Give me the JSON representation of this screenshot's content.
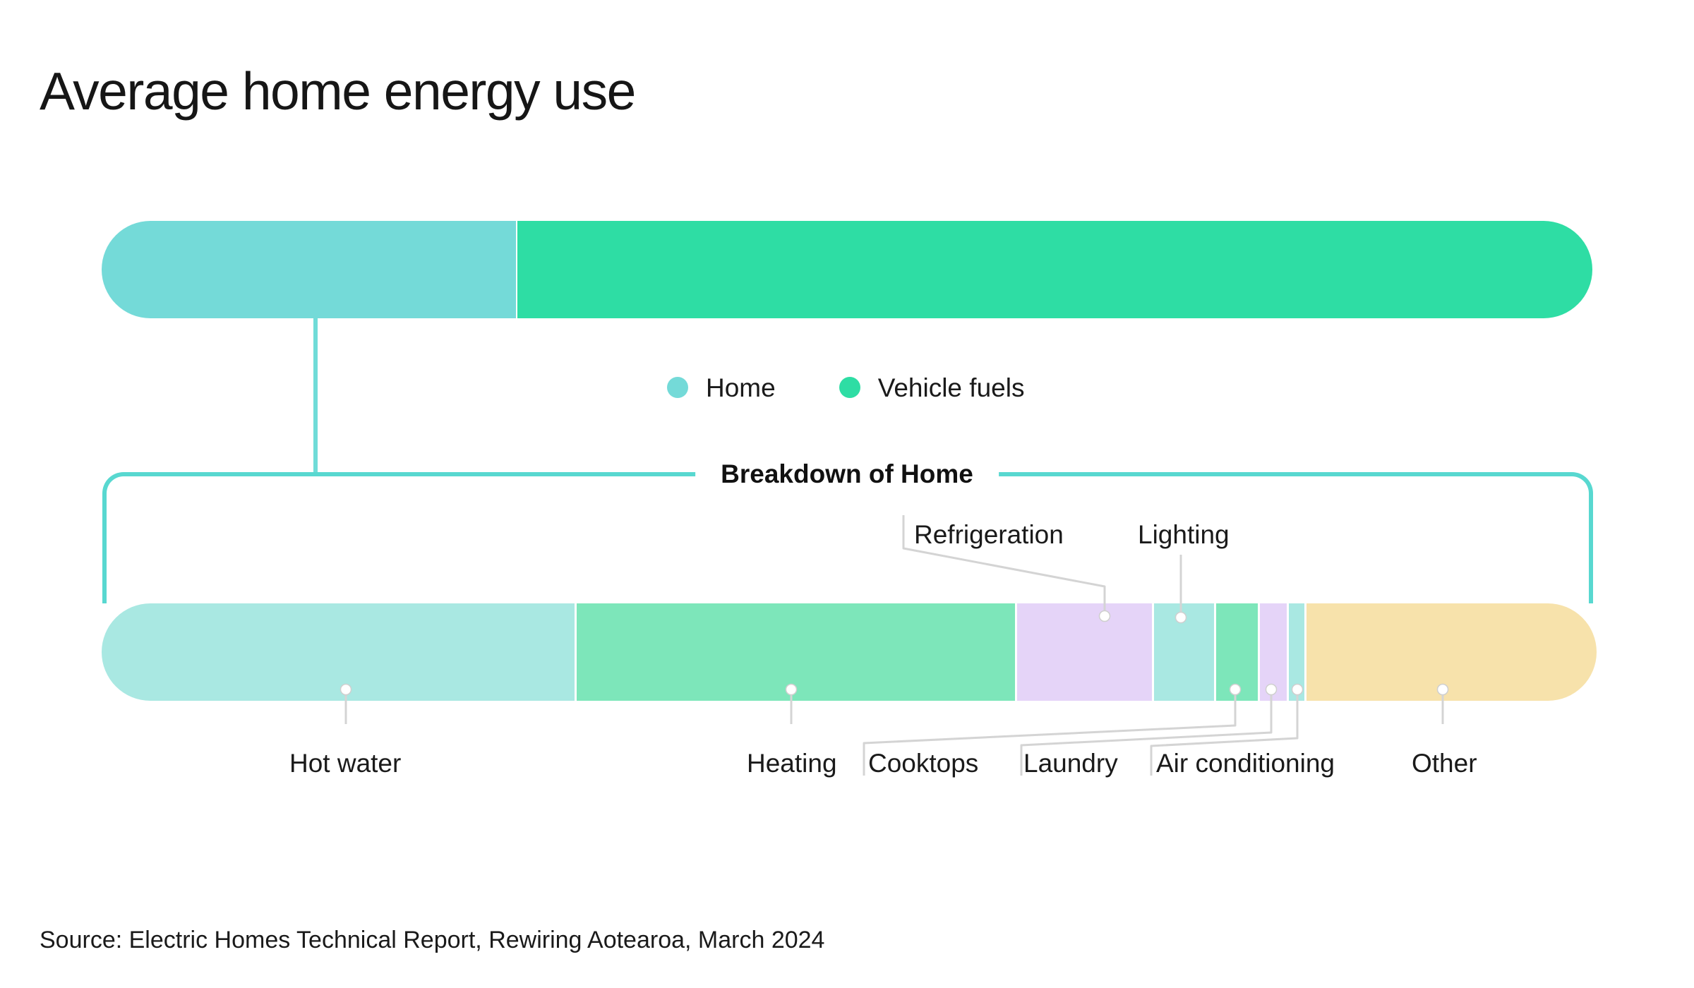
{
  "title": "Average home energy use",
  "source": "Source: Electric Homes Technical Report, Rewiring Aotearoa, March 2024",
  "breakdown_section_label": "Breakdown of Home",
  "colors": {
    "home": "#74DAD8",
    "vehicle_fuels": "#2EDDA4",
    "pale_cyan": "#A9E8E2",
    "mint": "#7DE6BA",
    "lavender": "#E5D4F8",
    "beige": "#F7E2AB",
    "bracket_teal": "#58D8D0",
    "callout_line": "#D4D4D4",
    "text": "#161616"
  },
  "legend": {
    "items": [
      {
        "label": "Home",
        "color": "home"
      },
      {
        "label": "Vehicle fuels",
        "color": "vehicle_fuels"
      }
    ]
  },
  "labels": {
    "hot_water": "Hot water",
    "heating": "Heating",
    "cooktops": "Cooktops",
    "refrigeration": "Refrigeration",
    "laundry": "Laundry",
    "lighting": "Lighting",
    "air_conditioning": "Air conditioning",
    "other": "Other"
  },
  "chart_data": [
    {
      "type": "bar",
      "name": "total_energy",
      "title": "Average home energy use",
      "orientation": "horizontal-stacked",
      "note": "no numeric labels shown; values estimated from segment widths",
      "legend_position": "below bar, centered",
      "segments": [
        {
          "key": "home",
          "label": "Home",
          "value": 27.8,
          "unit": "% of bar width (est.)",
          "color": "home"
        },
        {
          "key": "vehicle-fuels",
          "label": "Vehicle fuels",
          "value": 72.2,
          "unit": "% of bar width (est.)",
          "color": "vehicle_fuels"
        }
      ]
    },
    {
      "type": "bar",
      "name": "home_breakdown",
      "title": "Breakdown of Home",
      "orientation": "horizontal-stacked",
      "note": "no numeric labels shown; values estimated from segment widths",
      "segments": [
        {
          "key": "hot-water",
          "label": "Hot water",
          "value": 31.6,
          "unit": "% of bar width (est.)",
          "color": "pale_cyan"
        },
        {
          "key": "heating",
          "label": "Heating",
          "value": 29.3,
          "unit": "% of bar width (est.)",
          "color": "mint"
        },
        {
          "key": "refrigeration",
          "label": "Refrigeration",
          "value": 9.0,
          "unit": "% of bar width (est.)",
          "color": "lavender"
        },
        {
          "key": "lighting",
          "label": "Lighting",
          "value": 4.0,
          "unit": "% of bar width (est.)",
          "color": "pale_cyan"
        },
        {
          "key": "cooktops",
          "label": "Cooktops",
          "value": 2.8,
          "unit": "% of bar width (est.)",
          "color": "mint"
        },
        {
          "key": "laundry",
          "label": "Laundry",
          "value": 1.8,
          "unit": "% of bar width (est.)",
          "color": "lavender"
        },
        {
          "key": "air-conditioning",
          "label": "Air conditioning",
          "value": 1.0,
          "unit": "% of bar width (est.)",
          "color": "pale_cyan"
        },
        {
          "key": "other",
          "label": "Other",
          "value": 19.4,
          "unit": "% of bar width (est.)",
          "color": "beige"
        }
      ]
    }
  ]
}
